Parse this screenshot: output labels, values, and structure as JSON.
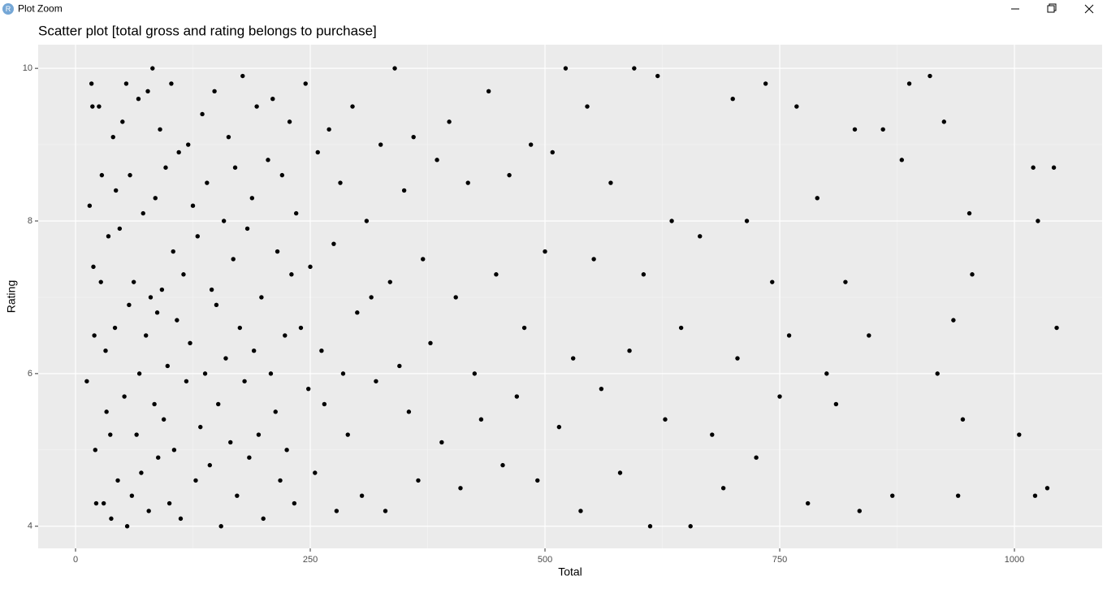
{
  "window": {
    "icon_text": "R",
    "title": "Plot Zoom"
  },
  "chart_data": {
    "type": "scatter",
    "title": "Scatter plot [total gross and rating belongs to purchase]",
    "x_label": "Total",
    "y_label": "Rating",
    "color": "#000000",
    "grid": true,
    "xlim": [
      -39.8,
      1093.4
    ],
    "ylim": [
      3.71,
      10.31
    ],
    "xticks": [
      0,
      250,
      500,
      750,
      1000
    ],
    "yticks": [
      4,
      6,
      8,
      10
    ],
    "x_minor_ticks": [
      125,
      375,
      625,
      875
    ],
    "y_minor_ticks": [
      5,
      7,
      9
    ],
    "x": [
      12,
      15,
      17,
      18,
      19,
      20,
      21,
      22,
      25,
      27,
      28,
      30,
      32,
      33,
      35,
      37,
      38,
      40,
      42,
      43,
      45,
      47,
      50,
      52,
      54,
      55,
      57,
      58,
      60,
      62,
      65,
      67,
      68,
      70,
      72,
      75,
      77,
      78,
      80,
      82,
      84,
      85,
      87,
      88,
      90,
      92,
      94,
      96,
      98,
      100,
      102,
      104,
      105,
      108,
      110,
      112,
      115,
      118,
      120,
      122,
      125,
      128,
      130,
      133,
      135,
      138,
      140,
      143,
      145,
      148,
      150,
      152,
      155,
      158,
      160,
      163,
      165,
      168,
      170,
      172,
      175,
      178,
      180,
      183,
      185,
      188,
      190,
      193,
      195,
      198,
      200,
      205,
      208,
      210,
      213,
      215,
      218,
      220,
      223,
      225,
      228,
      230,
      233,
      235,
      240,
      245,
      248,
      250,
      255,
      258,
      262,
      265,
      270,
      275,
      278,
      282,
      285,
      290,
      295,
      300,
      305,
      310,
      315,
      320,
      325,
      330,
      335,
      340,
      345,
      350,
      355,
      360,
      365,
      370,
      378,
      385,
      390,
      398,
      405,
      410,
      418,
      425,
      432,
      440,
      448,
      455,
      462,
      470,
      478,
      485,
      492,
      500,
      508,
      515,
      522,
      530,
      538,
      545,
      552,
      560,
      570,
      580,
      590,
      595,
      605,
      612,
      620,
      628,
      635,
      645,
      655,
      665,
      678,
      690,
      700,
      705,
      715,
      725,
      735,
      742,
      750,
      760,
      768,
      780,
      790,
      800,
      810,
      820,
      830,
      835,
      845,
      860,
      870,
      880,
      888,
      910,
      918,
      925,
      935,
      940,
      945,
      952,
      955,
      1005,
      1020,
      1022,
      1025,
      1035,
      1042,
      1045
    ],
    "values": [
      5.9,
      8.2,
      9.8,
      9.5,
      7.4,
      6.5,
      5.0,
      4.3,
      9.5,
      7.2,
      8.6,
      4.3,
      6.3,
      5.5,
      7.8,
      5.2,
      4.1,
      9.1,
      6.6,
      8.4,
      4.6,
      7.9,
      9.3,
      5.7,
      9.8,
      4.0,
      6.9,
      8.6,
      4.4,
      7.2,
      5.2,
      9.6,
      6.0,
      4.7,
      8.1,
      6.5,
      9.7,
      4.2,
      7.0,
      10.0,
      5.6,
      8.3,
      6.8,
      4.9,
      9.2,
      7.1,
      5.4,
      8.7,
      6.1,
      4.3,
      9.8,
      7.6,
      5.0,
      6.7,
      8.9,
      4.1,
      7.3,
      5.9,
      9.0,
      6.4,
      8.2,
      4.6,
      7.8,
      5.3,
      9.4,
      6.0,
      8.5,
      4.8,
      7.1,
      9.7,
      6.9,
      5.6,
      4.0,
      8.0,
      6.2,
      9.1,
      5.1,
      7.5,
      8.7,
      4.4,
      6.6,
      9.9,
      5.9,
      7.9,
      4.9,
      8.3,
      6.3,
      9.5,
      5.2,
      7.0,
      4.1,
      8.8,
      6.0,
      9.6,
      5.5,
      7.6,
      4.6,
      8.6,
      6.5,
      5.0,
      9.3,
      7.3,
      4.3,
      8.1,
      6.6,
      9.8,
      5.8,
      7.4,
      4.7,
      8.9,
      6.3,
      5.6,
      9.2,
      7.7,
      4.2,
      8.5,
      6.0,
      5.2,
      9.5,
      6.8,
      4.4,
      8.0,
      7.0,
      5.9,
      9.0,
      4.2,
      7.2,
      10.0,
      6.1,
      8.4,
      5.5,
      9.1,
      4.6,
      7.5,
      6.4,
      8.8,
      5.1,
      9.3,
      7.0,
      4.5,
      8.5,
      6.0,
      5.4,
      9.7,
      7.3,
      4.8,
      8.6,
      5.7,
      6.6,
      9.0,
      4.6,
      7.6,
      8.9,
      5.3,
      10.0,
      6.2,
      4.2,
      9.5,
      7.5,
      5.8,
      8.5,
      4.7,
      6.3,
      10.0,
      7.3,
      4.0,
      9.9,
      5.4,
      8.0,
      6.6,
      4.0,
      7.8,
      5.2,
      4.5,
      9.6,
      6.2,
      8.0,
      4.9,
      9.8,
      7.2,
      5.7,
      6.5,
      9.5,
      4.3,
      8.3,
      6.0,
      5.6,
      7.2,
      9.2,
      4.2,
      6.5,
      9.2,
      4.4,
      8.8,
      9.8,
      9.9,
      6.0,
      9.3,
      6.7,
      4.4,
      5.4,
      8.1,
      7.3,
      5.2,
      8.7,
      4.4,
      8.0,
      4.5,
      8.7,
      6.6
    ]
  }
}
